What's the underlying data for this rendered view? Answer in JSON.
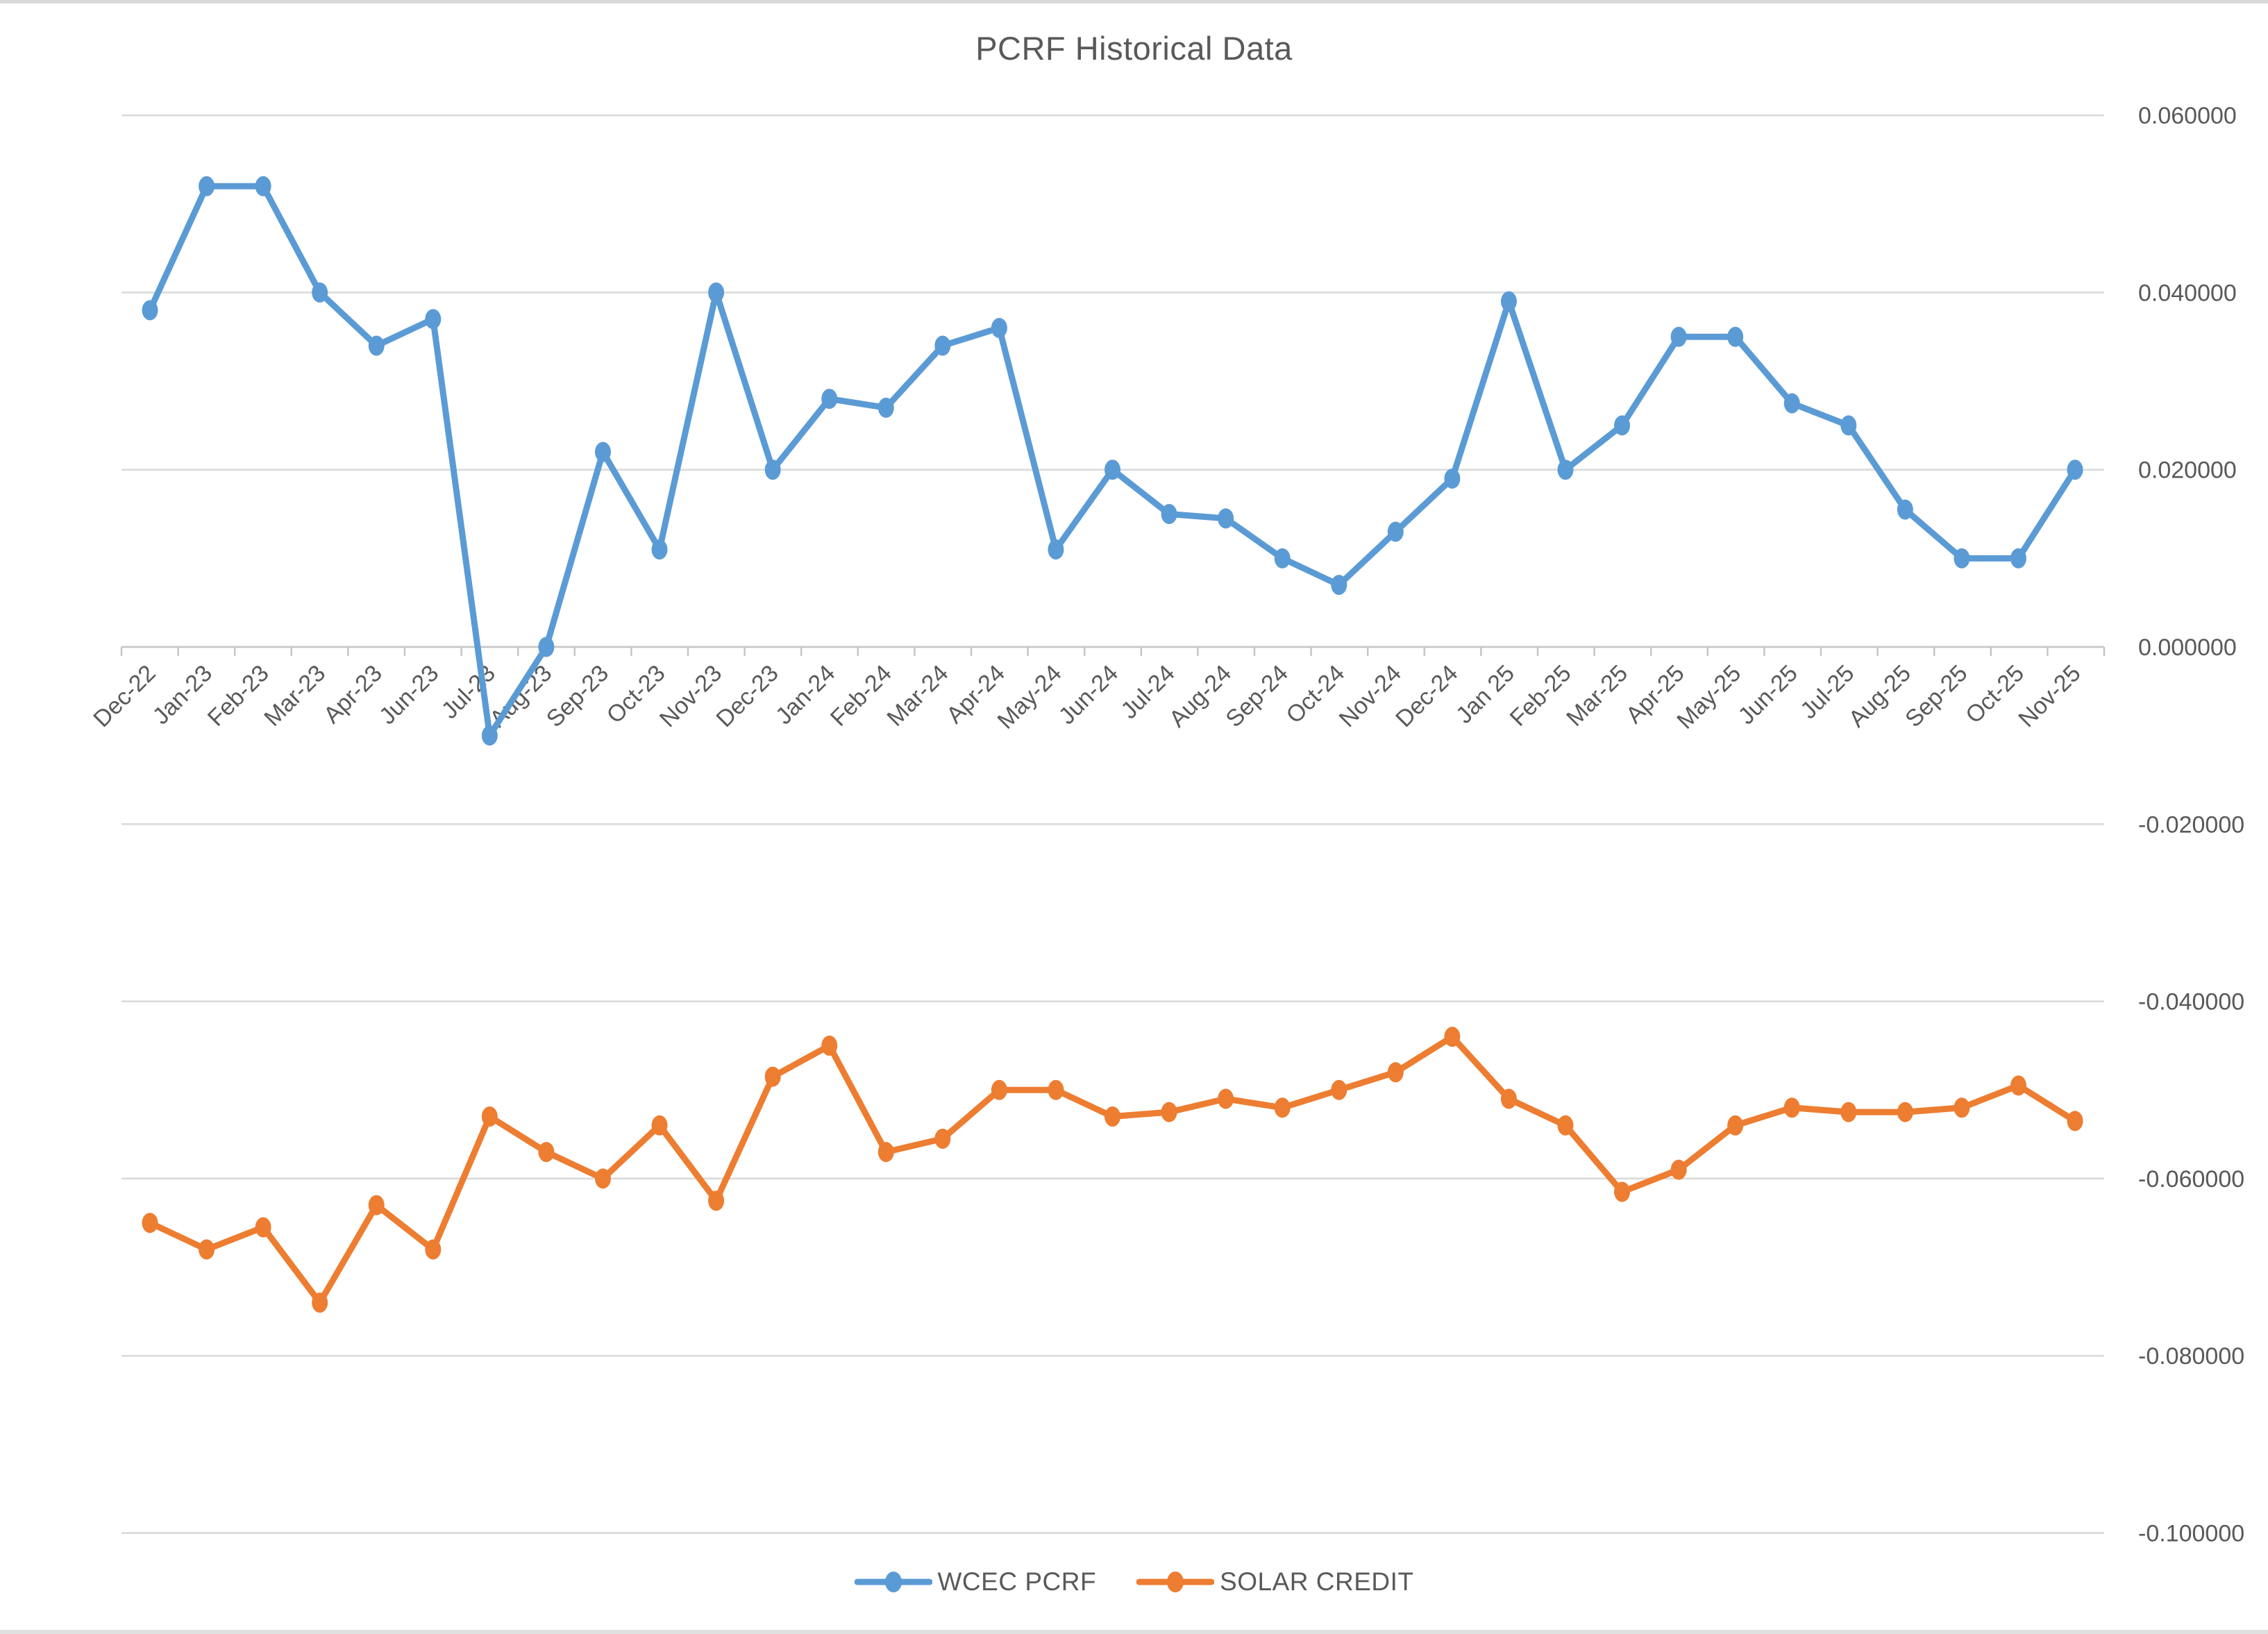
{
  "window": {
    "background": "#ffffff",
    "top_strip_color": "#d8d8d8",
    "bottom_strip_color": "#e0e0e0"
  },
  "chart_data": {
    "type": "line",
    "title": "PCRF Historical Data",
    "title_color": "#595959",
    "grid": true,
    "gridline_color": "#d9d9d9",
    "axis_color": "#c6c6c6",
    "text_color": "#595959",
    "legend_position": "bottom",
    "x_axis": {
      "label_rotation_deg": -45,
      "tick_marks": true
    },
    "y_axis": {
      "side": "right",
      "min": -0.1,
      "max": 0.06,
      "step": 0.02,
      "decimals": 6,
      "tick_labels": [
        "0.060000",
        "0.040000",
        "0.020000",
        "0.000000",
        "-0.020000",
        "-0.040000",
        "-0.060000",
        "-0.080000",
        "-0.100000"
      ]
    },
    "categories": [
      "Dec-22",
      "Jan-23",
      "Feb-23",
      "Mar-23",
      "Apr-23",
      "Jun-23",
      "Jul-23",
      "Aug-23",
      "Sep-23",
      "Oct-23",
      "Nov-23",
      "Dec-23",
      "Jan-24",
      "Feb-24",
      "Mar-24",
      "Apr-24",
      "May-24",
      "Jun-24",
      "Jul-24",
      "Aug-24",
      "Sep-24",
      "Oct-24",
      "Nov-24",
      "Dec-24",
      "Jan 25",
      "Feb-25",
      "Mar-25",
      "Apr-25",
      "May-25",
      "Jun-25",
      "Jul-25",
      "Aug-25",
      "Sep-25",
      "Oct-25",
      "Nov-25"
    ],
    "series": [
      {
        "name": "WCEC PCRF",
        "color": "#5b9bd5",
        "values": [
          0.038,
          0.052,
          0.052,
          0.04,
          0.034,
          0.037,
          -0.01,
          0.0,
          0.022,
          0.011,
          0.04,
          0.02,
          0.028,
          0.027,
          0.034,
          0.036,
          0.011,
          0.02,
          0.015,
          0.0145,
          0.01,
          0.007,
          0.013,
          0.019,
          0.039,
          0.02,
          0.025,
          0.035,
          0.035,
          0.0275,
          0.025,
          0.0155,
          0.01,
          0.01,
          0.02
        ]
      },
      {
        "name": "SOLAR CREDIT",
        "color": "#ed7d31",
        "values": [
          -0.065,
          -0.068,
          -0.0655,
          -0.074,
          -0.063,
          -0.068,
          -0.053,
          -0.057,
          -0.06,
          -0.054,
          -0.0625,
          -0.0485,
          -0.045,
          -0.057,
          -0.0555,
          -0.05,
          -0.05,
          -0.053,
          -0.0525,
          -0.051,
          -0.052,
          -0.05,
          -0.048,
          -0.044,
          -0.051,
          -0.054,
          -0.0615,
          -0.059,
          -0.054,
          -0.052,
          -0.0525,
          -0.0525,
          -0.052,
          -0.0495,
          -0.0535
        ]
      }
    ]
  }
}
